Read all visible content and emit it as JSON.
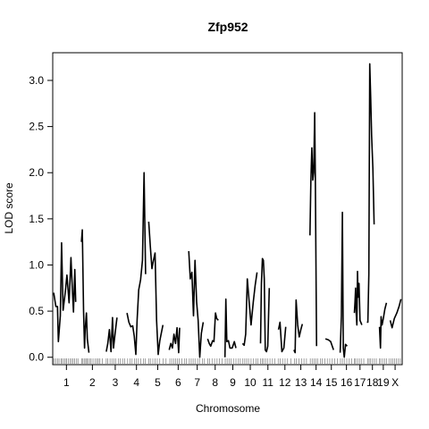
{
  "chart_data": {
    "type": "line",
    "title": "Zfp952",
    "xlabel": "Chromosome",
    "ylabel": "LOD score",
    "ylim": [
      -0.08,
      3.3
    ],
    "y_ticks": [
      0.0,
      0.5,
      1.0,
      1.5,
      2.0,
      2.5,
      3.0
    ],
    "y_tick_labels": [
      "0.0",
      "0.5",
      "1.0",
      "1.5",
      "2.0",
      "2.5",
      "3.0"
    ],
    "grid": false,
    "chromosomes": [
      {
        "label": "1",
        "start": 0,
        "end": 87
      },
      {
        "label": "2",
        "start": 87,
        "end": 165
      },
      {
        "label": "3",
        "start": 165,
        "end": 232
      },
      {
        "label": "4",
        "start": 232,
        "end": 300
      },
      {
        "label": "5",
        "start": 300,
        "end": 367
      },
      {
        "label": "6",
        "start": 367,
        "end": 430
      },
      {
        "label": "7",
        "start": 430,
        "end": 488
      },
      {
        "label": "8",
        "start": 488,
        "end": 544
      },
      {
        "label": "9",
        "start": 544,
        "end": 600
      },
      {
        "label": "10",
        "start": 600,
        "end": 655
      },
      {
        "label": "11",
        "start": 655,
        "end": 712
      },
      {
        "label": "12",
        "start": 712,
        "end": 763
      },
      {
        "label": "13",
        "start": 763,
        "end": 813
      },
      {
        "label": "14",
        "start": 813,
        "end": 860
      },
      {
        "label": "15",
        "start": 860,
        "end": 910
      },
      {
        "label": "16",
        "start": 910,
        "end": 956
      },
      {
        "label": "17",
        "start": 956,
        "end": 996
      },
      {
        "label": "18",
        "start": 996,
        "end": 1035
      },
      {
        "label": "19",
        "start": 1035,
        "end": 1065
      },
      {
        "label": "X",
        "start": 1065,
        "end": 1110
      }
    ],
    "series": [
      {
        "chr": "1",
        "x": [
          3,
          10,
          15,
          18,
          24,
          28,
          33,
          40,
          45,
          52,
          58,
          62,
          66,
          70,
          73
        ],
        "y": [
          0.7,
          0.55,
          0.55,
          0.17,
          0.45,
          1.24,
          0.51,
          0.71,
          0.89,
          0.59,
          1.08,
          0.77,
          0.49,
          0.95,
          0.6
        ]
      },
      {
        "chr": "2",
        "x": [
          91,
          94,
          98,
          101,
          103,
          107,
          110,
          115
        ],
        "y": [
          1.25,
          1.38,
          0.5,
          0.1,
          0.3,
          0.48,
          0.2,
          0.05
        ]
      },
      {
        "chr": "3",
        "x": [
          170,
          175,
          180,
          185,
          190,
          193,
          198,
          204
        ],
        "y": [
          0.06,
          0.15,
          0.3,
          0.06,
          0.43,
          0.1,
          0.25,
          0.43
        ]
      },
      {
        "chr": "4",
        "x": [
          236,
          242,
          248,
          254,
          259,
          264,
          268,
          273,
          279,
          285,
          290,
          295
        ],
        "y": [
          0.48,
          0.38,
          0.33,
          0.34,
          0.23,
          0.03,
          0.4,
          0.73,
          0.84,
          1.05,
          2.0,
          0.9
        ]
      },
      {
        "chr": "5",
        "x": [
          305,
          310,
          315,
          320,
          325,
          330,
          335,
          340,
          350
        ],
        "y": [
          1.47,
          1.2,
          0.96,
          1.05,
          1.13,
          0.4,
          0.03,
          0.18,
          0.35
        ]
      },
      {
        "chr": "6",
        "x": [
          370,
          375,
          380,
          385,
          390,
          395,
          400,
          403
        ],
        "y": [
          0.08,
          0.15,
          0.1,
          0.25,
          0.15,
          0.32,
          0.05,
          0.32
        ]
      },
      {
        "chr": "7",
        "x": [
          432,
          437,
          442,
          447,
          452,
          457,
          462,
          467,
          472,
          478
        ],
        "y": [
          1.15,
          0.85,
          0.92,
          0.45,
          1.05,
          0.6,
          0.4,
          0.0,
          0.26,
          0.38
        ]
      },
      {
        "chr": "8",
        "x": [
          492,
          497,
          502,
          508,
          512,
          517,
          521,
          526
        ],
        "y": [
          0.2,
          0.15,
          0.12,
          0.18,
          0.17,
          0.48,
          0.42,
          0.4
        ]
      },
      {
        "chr": "9",
        "x": [
          547,
          550,
          553,
          558,
          563,
          570,
          577,
          582
        ],
        "y": [
          0.0,
          0.63,
          0.17,
          0.18,
          0.1,
          0.1,
          0.17,
          0.1
        ]
      },
      {
        "chr": "10",
        "x": [
          603,
          608,
          613,
          618,
          624,
          630,
          637,
          643,
          649
        ],
        "y": [
          0.15,
          0.13,
          0.25,
          0.85,
          0.6,
          0.35,
          0.6,
          0.78,
          0.92
        ]
      },
      {
        "chr": "11",
        "x": [
          660,
          663,
          666,
          669,
          672,
          675,
          679,
          683,
          688
        ],
        "y": [
          0.15,
          0.8,
          1.07,
          1.05,
          0.85,
          0.08,
          0.06,
          0.12,
          0.75
        ]
      },
      {
        "chr": "12",
        "x": [
          717,
          722,
          728,
          734,
          740
        ],
        "y": [
          0.3,
          0.38,
          0.06,
          0.1,
          0.33
        ]
      },
      {
        "chr": "13",
        "x": [
          766,
          770,
          773,
          778,
          783,
          788,
          793
        ],
        "y": [
          0.08,
          0.05,
          0.62,
          0.35,
          0.22,
          0.3,
          0.36
        ]
      },
      {
        "chr": "14",
        "x": [
          817,
          820,
          823,
          826,
          829,
          832,
          834,
          838
        ],
        "y": [
          1.32,
          1.9,
          2.27,
          1.92,
          2.0,
          2.65,
          1.98,
          0.12
        ]
      },
      {
        "chr": "15",
        "x": [
          866,
          875,
          883,
          892
        ],
        "y": [
          0.2,
          0.19,
          0.17,
          0.08
        ]
      },
      {
        "chr": "16",
        "x": [
          913,
          917,
          920,
          923,
          926,
          930,
          935
        ],
        "y": [
          0.05,
          0.45,
          1.57,
          0.1,
          0.0,
          0.14,
          0.12
        ]
      },
      {
        "chr": "17",
        "x": [
          958,
          960,
          962,
          964,
          966,
          968,
          970,
          973,
          976,
          982
        ],
        "y": [
          0.48,
          0.6,
          0.75,
          0.47,
          0.35,
          0.93,
          0.65,
          0.8,
          0.4,
          0.35
        ]
      },
      {
        "chr": "18",
        "x": [
          998,
          1001,
          1004,
          1007,
          1010,
          1013,
          1017,
          1021
        ],
        "y": [
          0.38,
          0.38,
          0.9,
          3.18,
          2.8,
          2.4,
          2.05,
          1.44
        ]
      },
      {
        "chr": "19",
        "x": [
          1038,
          1041,
          1043,
          1046,
          1050,
          1055,
          1060
        ],
        "y": [
          0.33,
          0.1,
          0.44,
          0.35,
          0.42,
          0.52,
          0.59
        ]
      },
      {
        "chr": "X",
        "x": [
          1072,
          1078,
          1085,
          1093,
          1100,
          1106
        ],
        "y": [
          0.4,
          0.32,
          0.42,
          0.48,
          0.55,
          0.63
        ]
      }
    ],
    "markers": [
      5,
      10,
      15,
      20,
      26,
      30,
      35,
      40,
      44,
      50,
      55,
      60,
      65,
      70,
      76,
      80,
      92,
      96,
      100,
      105,
      108,
      112,
      118,
      122,
      128,
      135,
      140,
      145,
      150,
      158,
      170,
      175,
      182,
      188,
      195,
      200,
      208,
      215,
      222,
      228,
      238,
      245,
      252,
      260,
      266,
      272,
      280,
      288,
      294,
      305,
      310,
      318,
      325,
      332,
      340,
      350,
      360,
      372,
      378,
      384,
      390,
      396,
      402,
      410,
      418,
      425,
      434,
      440,
      446,
      452,
      460,
      466,
      475,
      482,
      492,
      498,
      506,
      514,
      522,
      530,
      538,
      548,
      554,
      560,
      566,
      574,
      582,
      590,
      596,
      604,
      610,
      616,
      622,
      630,
      638,
      646,
      652,
      660,
      665,
      670,
      676,
      682,
      690,
      698,
      706,
      716,
      722,
      730,
      738,
      746,
      756,
      768,
      774,
      782,
      790,
      798,
      806,
      818,
      824,
      830,
      836,
      842,
      850,
      856,
      864,
      872,
      880,
      888,
      896,
      904,
      914,
      920,
      926,
      934,
      942,
      950,
      958,
      962,
      968,
      974,
      980,
      988,
      1000,
      1005,
      1010,
      1016,
      1022,
      1028,
      1038,
      1042,
      1048,
      1054,
      1060,
      1068,
      1074,
      1080,
      1086,
      1092,
      1098,
      1104
    ]
  }
}
